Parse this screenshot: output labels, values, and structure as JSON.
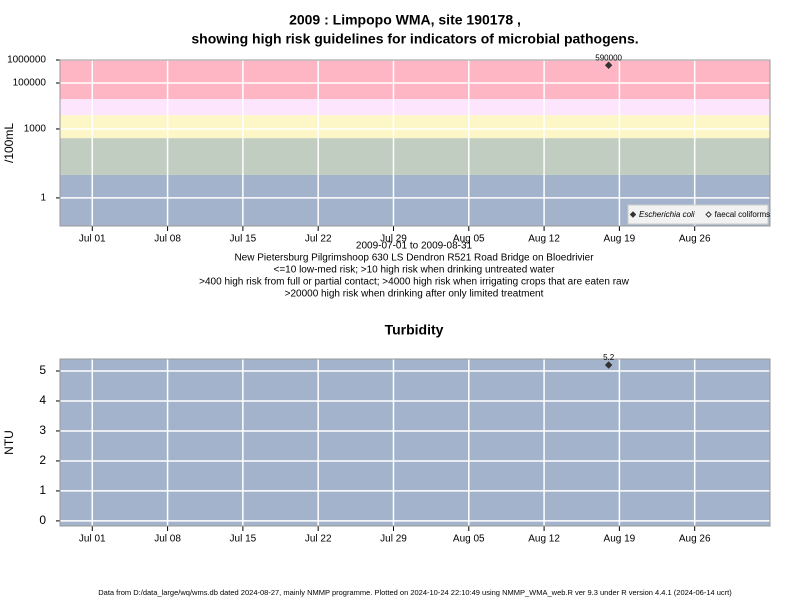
{
  "title": "2009 : Limpopo WMA, site 190178 ,",
  "subtitle": "showing high risk guidelines for indicators of microbial pathogens.",
  "footer": "Data from D:/data_large/wq/wms.db dated 2024-08-27, mainly NMMP programme. Plotted on 2024-10-24 22:10:49 using NMMP_WMA_web.R ver 9.3 under R version 4.4.1 (2024-06-14 ucrt)",
  "chart_data": [
    {
      "type": "scatter",
      "ylabel": "/100mL",
      "log_y": true,
      "grid": true,
      "x": [
        "2009-08-18"
      ],
      "series": [
        {
          "name": "Escherichia coli",
          "color": "#333333",
          "marker": "filled-diamond",
          "values": [
            590000
          ],
          "value_labels": [
            "590000"
          ]
        },
        {
          "name": "faecal coliforms",
          "color": "#333333",
          "marker": "open-diamond",
          "values": [
            null
          ]
        }
      ],
      "bands": [
        {
          "from": 0.06,
          "to": 10,
          "color": "#a3b3cc"
        },
        {
          "from": 10,
          "to": 400,
          "color": "#c1cdc0"
        },
        {
          "from": 400,
          "to": 4000,
          "color": "#fdf7c8"
        },
        {
          "from": 4000,
          "to": 20000,
          "color": "#fde6fd"
        },
        {
          "from": 20000,
          "to": 1000000,
          "color": "#ffb6c4"
        }
      ],
      "xlim": [
        "2009-06-28",
        "2009-09-02"
      ],
      "xticks": [
        {
          "value": "2009-07-01",
          "label": "Jul 01"
        },
        {
          "value": "2009-07-08",
          "label": "Jul 08"
        },
        {
          "value": "2009-07-15",
          "label": "Jul 15"
        },
        {
          "value": "2009-07-22",
          "label": "Jul 22"
        },
        {
          "value": "2009-07-29",
          "label": "Jul 29"
        },
        {
          "value": "2009-08-05",
          "label": "Aug 05"
        },
        {
          "value": "2009-08-12",
          "label": "Aug 12"
        },
        {
          "value": "2009-08-19",
          "label": "Aug 19"
        },
        {
          "value": "2009-08-26",
          "label": "Aug 26"
        }
      ],
      "ylim": [
        0.06,
        1000000
      ],
      "yticks": [
        1,
        1000,
        100000,
        1000000
      ],
      "legend": "bottom-right",
      "notes": [
        "2009-07-01 to 2009-08-31",
        "New Pietersburg Pilgrimshoop 630 LS Dendron R521 Road Bridge on Bloedrivier",
        "<=10 low-med risk; >10 high risk when drinking untreated water",
        ">400 high risk from full or partial contact; >4000 high risk when irrigating crops that are eaten raw",
        ">20000 high risk when drinking after only limited treatment"
      ]
    },
    {
      "type": "scatter",
      "title": "Turbidity",
      "ylabel": "NTU",
      "log_y": false,
      "grid": true,
      "x": [
        "2009-08-18"
      ],
      "series": [
        {
          "name": "Turbidity",
          "color": "#333333",
          "marker": "filled-diamond",
          "values": [
            5.2
          ],
          "value_labels": [
            "5.2"
          ]
        }
      ],
      "background": "#a3b3cc",
      "xlim": [
        "2009-06-28",
        "2009-09-02"
      ],
      "xticks": [
        {
          "value": "2009-07-01",
          "label": "Jul 01"
        },
        {
          "value": "2009-07-08",
          "label": "Jul 08"
        },
        {
          "value": "2009-07-15",
          "label": "Jul 15"
        },
        {
          "value": "2009-07-22",
          "label": "Jul 22"
        },
        {
          "value": "2009-07-29",
          "label": "Jul 29"
        },
        {
          "value": "2009-08-05",
          "label": "Aug 05"
        },
        {
          "value": "2009-08-12",
          "label": "Aug 12"
        },
        {
          "value": "2009-08-19",
          "label": "Aug 19"
        },
        {
          "value": "2009-08-26",
          "label": "Aug 26"
        }
      ],
      "ylim": [
        -0.17,
        5.4
      ],
      "yticks": [
        0,
        1,
        2,
        3,
        4,
        5
      ]
    }
  ]
}
